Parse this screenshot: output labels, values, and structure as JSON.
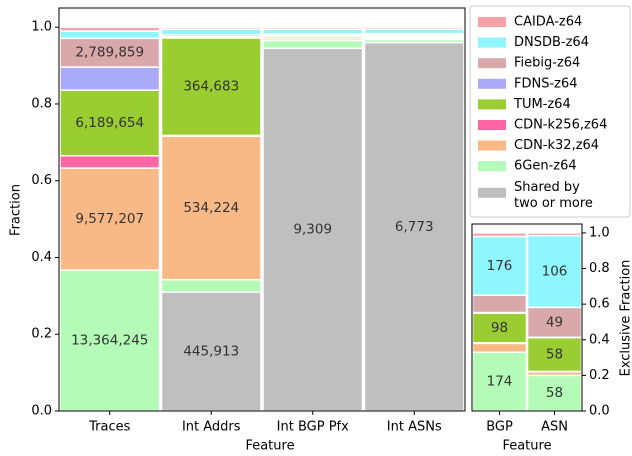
{
  "chart_data": [
    {
      "type": "stacked_bar",
      "xlabel": "Feature",
      "ylabel": "Fraction",
      "categories": [
        "Traces",
        "Int Addrs",
        "Int BGP Pfx",
        "Int ASNs"
      ],
      "ylim": [
        0,
        1.05
      ],
      "yticks": [
        {
          "value": 0,
          "label": "0.0"
        },
        0.2,
        0.4,
        0.6,
        0.8,
        {
          "value": 1,
          "label": "1.0"
        }
      ],
      "legend": "right",
      "series": [
        {
          "name": "Shared by\ntwo or more",
          "color": "#bfbfbf",
          "values": [
            0,
            0.31,
            0.945,
            0.96
          ],
          "segment_labels": [
            null,
            "445,913",
            "9,309",
            "6,773"
          ]
        },
        {
          "name": "6Gen-z64",
          "color": "#b4fbb8",
          "values": [
            0.367,
            0.032,
            0.02,
            0.008
          ],
          "segment_labels": [
            "13,364,245",
            null,
            null,
            null
          ]
        },
        {
          "name": "CDN-k32,z64",
          "color": "#f8b987",
          "values": [
            0.266,
            0.374,
            0.005,
            0.004
          ],
          "segment_labels": [
            "9,577,207",
            "534,224",
            null,
            null
          ]
        },
        {
          "name": "CDN-k256,z64",
          "color": "#ff66a3",
          "values": [
            0.032,
            0.002,
            0.001,
            0.001
          ]
        },
        {
          "name": "TUM-z64",
          "color": "#9acd32",
          "values": [
            0.171,
            0.254,
            0.005,
            0.004
          ],
          "segment_labels": [
            "6,189,654",
            "364,683",
            null,
            null
          ]
        },
        {
          "name": "FDNS-z64",
          "color": "#a9abf8",
          "values": [
            0.06,
            0.003,
            0.002,
            0.002
          ]
        },
        {
          "name": "Fiebig-z64",
          "color": "#d9a8ab",
          "values": [
            0.075,
            0.005,
            0.004,
            0.004
          ],
          "segment_labels": [
            "2,789,859",
            null,
            null,
            null
          ]
        },
        {
          "name": "DNSDB-z64",
          "color": "#8ff6fd",
          "values": [
            0.019,
            0.015,
            0.013,
            0.012
          ]
        },
        {
          "name": "CAIDA-z64",
          "color": "#f7a1a9",
          "values": [
            0.01,
            0.005,
            0.005,
            0.005
          ]
        }
      ]
    },
    {
      "type": "stacked_bar",
      "xlabel": "Feature",
      "ylabel": "Exclusive Fraction",
      "categories": [
        "BGP",
        "ASN"
      ],
      "ylim": [
        0,
        1.05
      ],
      "yticks": [
        {
          "value": 0,
          "label": "0.0"
        },
        0.2,
        0.4,
        0.6,
        0.8,
        {
          "value": 1,
          "label": "1.0"
        }
      ],
      "series": [
        {
          "color": "#b4fbb8",
          "values": [
            0.33,
            0.2
          ],
          "segment_labels": [
            "174",
            "58"
          ]
        },
        {
          "color": "#f8b987",
          "values": [
            0.05,
            0.02
          ]
        },
        {
          "color": "#ff66a3",
          "values": [
            0.003,
            0.002
          ]
        },
        {
          "color": "#9acd32",
          "values": [
            0.167,
            0.19
          ],
          "segment_labels": [
            "98",
            "58"
          ]
        },
        {
          "color": "#a9abf8",
          "values": [
            0.003,
            0.002
          ]
        },
        {
          "color": "#d9a8ab",
          "values": [
            0.097,
            0.168
          ],
          "segment_labels": [
            null,
            "49"
          ]
        },
        {
          "color": "#8ff6fd",
          "values": [
            0.33,
            0.403
          ],
          "segment_labels": [
            "176",
            "106"
          ]
        },
        {
          "color": "#f7a1a9",
          "values": [
            0.02,
            0.015
          ]
        }
      ]
    }
  ]
}
